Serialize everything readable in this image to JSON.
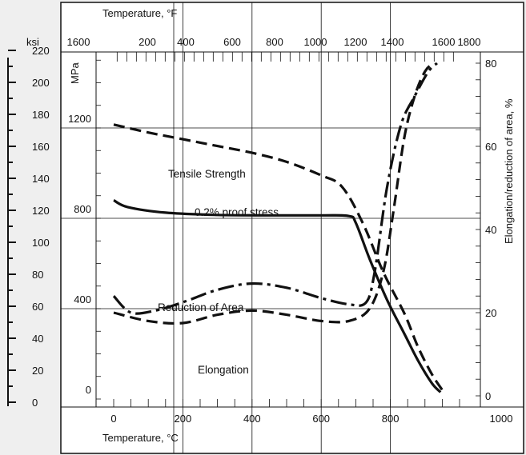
{
  "chart_data": {
    "type": "line",
    "title": "",
    "x_bottom": {
      "label": "Temperature, °C",
      "ticks": [
        "0",
        "200",
        "400",
        "600",
        "800",
        "1000"
      ],
      "range": [
        -30,
        1000
      ]
    },
    "x_top": {
      "label": "Temperature, °F",
      "ticks": [
        "1600",
        "200",
        "400",
        "600",
        "800",
        "1000",
        "1200",
        "1400",
        "1600",
        "1800"
      ]
    },
    "y_left_ksi": {
      "label": "ksi",
      "ticks": [
        "220",
        "200",
        "180",
        "160",
        "140",
        "120",
        "100",
        "80",
        "60",
        "40",
        "20",
        "0"
      ],
      "range": [
        0,
        230
      ]
    },
    "y_left_mpa": {
      "label": "MPa",
      "ticks": [
        "1200",
        "800",
        "400",
        "0"
      ],
      "range": [
        0,
        1600
      ]
    },
    "y_right": {
      "label": "Elongation/reduction of area, %",
      "ticks": [
        "80",
        "60",
        "40",
        "20",
        "0"
      ],
      "range": [
        0,
        80
      ]
    },
    "grid": true,
    "series": [
      {
        "name": "Tensile Strength",
        "axis": "MPa",
        "style": "dashed",
        "points": [
          [
            0,
            1215
          ],
          [
            100,
            1180
          ],
          [
            200,
            1150
          ],
          [
            300,
            1120
          ],
          [
            400,
            1090
          ],
          [
            500,
            1050
          ],
          [
            600,
            990
          ],
          [
            660,
            940
          ],
          [
            720,
            780
          ],
          [
            780,
            560
          ],
          [
            840,
            380
          ],
          [
            880,
            230
          ],
          [
            920,
            110
          ],
          [
            950,
            40
          ]
        ]
      },
      {
        "name": "0.2% proof stress",
        "axis": "MPa",
        "style": "solid",
        "points": [
          [
            0,
            880
          ],
          [
            40,
            850
          ],
          [
            150,
            825
          ],
          [
            300,
            815
          ],
          [
            450,
            813
          ],
          [
            600,
            813
          ],
          [
            680,
            810
          ],
          [
            700,
            780
          ],
          [
            740,
            620
          ],
          [
            790,
            440
          ],
          [
            840,
            290
          ],
          [
            880,
            170
          ],
          [
            920,
            70
          ],
          [
            945,
            30
          ]
        ]
      },
      {
        "name": "Reduction of Area",
        "axis": "pct",
        "style": "dashdot",
        "points": [
          [
            0,
            24
          ],
          [
            50,
            20
          ],
          [
            120,
            20.5
          ],
          [
            200,
            22.5
          ],
          [
            300,
            25.5
          ],
          [
            400,
            27
          ],
          [
            500,
            26
          ],
          [
            600,
            23.5
          ],
          [
            680,
            22
          ],
          [
            730,
            22.5
          ],
          [
            755,
            30
          ],
          [
            790,
            50
          ],
          [
            830,
            65
          ],
          [
            870,
            72
          ],
          [
            910,
            78
          ],
          [
            935,
            80
          ]
        ]
      },
      {
        "name": "Elongation",
        "axis": "pct",
        "style": "dashed",
        "points": [
          [
            0,
            20
          ],
          [
            100,
            18
          ],
          [
            200,
            17.5
          ],
          [
            300,
            19.5
          ],
          [
            400,
            20.5
          ],
          [
            500,
            19.5
          ],
          [
            600,
            18
          ],
          [
            680,
            18
          ],
          [
            740,
            21
          ],
          [
            780,
            30
          ],
          [
            810,
            45
          ],
          [
            840,
            62
          ],
          [
            870,
            72
          ],
          [
            900,
            78
          ],
          [
            925,
            80
          ]
        ]
      }
    ]
  }
}
